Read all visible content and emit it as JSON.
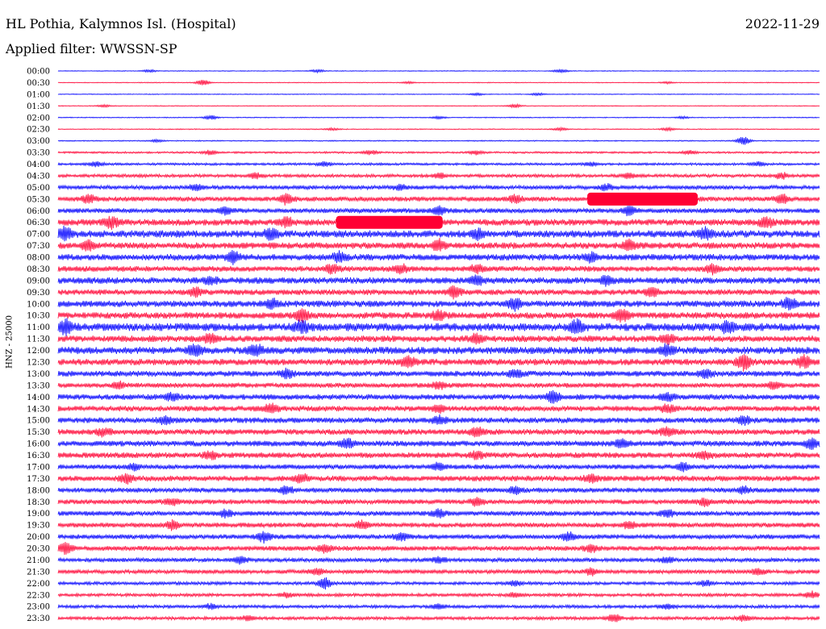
{
  "header": {
    "station": "HL Pothia, Kalymnos Isl. (Hospital)",
    "date": "2022-11-29",
    "filter": "Applied filter: WWSSN-SP",
    "channel": "HNZ - 25000"
  },
  "chart_data": {
    "type": "line",
    "title": "HL Pothia, Kalymnos Isl. (Hospital)",
    "subtitle": "Applied filter: WWSSN-SP",
    "ylabel": "HNZ - 25000",
    "xlabel": "",
    "grid": false,
    "legend": "none",
    "colors": [
      "#0000ff",
      "#ff0033"
    ],
    "rows": [
      {
        "time": "00:00",
        "color": "#0000ff",
        "noise": 0.5,
        "bursts": [
          [
            0.12,
            1.6
          ],
          [
            0.34,
            1.8
          ],
          [
            0.66,
            2.2
          ]
        ]
      },
      {
        "time": "00:30",
        "color": "#ff0033",
        "noise": 0.5,
        "bursts": [
          [
            0.19,
            3.5
          ],
          [
            0.46,
            1.5
          ],
          [
            0.8,
            1.4
          ]
        ]
      },
      {
        "time": "01:00",
        "color": "#0000ff",
        "noise": 0.5,
        "bursts": [
          [
            0.55,
            1.4
          ],
          [
            0.63,
            1.5
          ]
        ]
      },
      {
        "time": "01:30",
        "color": "#ff0033",
        "noise": 0.5,
        "bursts": [
          [
            0.06,
            1.4
          ],
          [
            0.6,
            2
          ]
        ]
      },
      {
        "time": "02:00",
        "color": "#0000ff",
        "noise": 0.6,
        "bursts": [
          [
            0.2,
            2.5
          ],
          [
            0.5,
            1.5
          ],
          [
            0.82,
            1.4
          ]
        ]
      },
      {
        "time": "02:30",
        "color": "#ff0033",
        "noise": 0.6,
        "bursts": [
          [
            0.36,
            1.6
          ],
          [
            0.66,
            1.8
          ],
          [
            0.8,
            2
          ]
        ]
      },
      {
        "time": "03:00",
        "color": "#0000ff",
        "noise": 0.7,
        "bursts": [
          [
            0.13,
            1.5
          ],
          [
            0.9,
            5
          ]
        ]
      },
      {
        "time": "03:30",
        "color": "#ff0033",
        "noise": 1.2,
        "bursts": [
          [
            0.2,
            2.5
          ],
          [
            0.41,
            2.5
          ],
          [
            0.55,
            2.5
          ],
          [
            0.83,
            2.5
          ]
        ]
      },
      {
        "time": "04:00",
        "color": "#0000ff",
        "noise": 1.5,
        "bursts": [
          [
            0.05,
            3
          ],
          [
            0.35,
            2.5
          ],
          [
            0.7,
            2.5
          ],
          [
            0.92,
            2.5
          ]
        ]
      },
      {
        "time": "04:30",
        "color": "#ff0033",
        "noise": 2,
        "bursts": [
          [
            0.26,
            3.5
          ],
          [
            0.5,
            3
          ],
          [
            0.75,
            3
          ],
          [
            0.95,
            3.5
          ]
        ]
      },
      {
        "time": "05:00",
        "color": "#0000ff",
        "noise": 2.5,
        "bursts": [
          [
            0.18,
            3.5
          ],
          [
            0.45,
            3.5
          ],
          [
            0.72,
            3.5
          ]
        ]
      },
      {
        "time": "05:30",
        "color": "#ff0033",
        "noise": 3,
        "bursts": [
          [
            0.04,
            5
          ],
          [
            0.3,
            6
          ],
          [
            0.6,
            4.5
          ],
          [
            0.95,
            5
          ]
        ]
      },
      {
        "time": "06:00",
        "color": "#0000ff",
        "noise": 3,
        "bursts": [
          [
            0.22,
            4
          ],
          [
            0.5,
            4
          ],
          [
            0.75,
            4.5
          ]
        ]
      },
      {
        "time": "06:30",
        "color": "#ff0033",
        "noise": 4,
        "bursts": [
          [
            0.07,
            6
          ],
          [
            0.3,
            5
          ],
          [
            0.93,
            6
          ]
        ]
      },
      {
        "time": "07:00",
        "color": "#0000ff",
        "noise": 4.5,
        "bursts": [
          [
            0.01,
            7
          ],
          [
            0.28,
            6
          ],
          [
            0.55,
            5
          ],
          [
            0.85,
            5.5
          ]
        ]
      },
      {
        "time": "07:30",
        "color": "#ff0033",
        "noise": 4,
        "bursts": [
          [
            0.04,
            5
          ],
          [
            0.5,
            6
          ],
          [
            0.75,
            5.5
          ]
        ]
      },
      {
        "time": "08:00",
        "color": "#0000ff",
        "noise": 4,
        "bursts": [
          [
            0.23,
            7
          ],
          [
            0.37,
            6
          ],
          [
            0.7,
            4.5
          ]
        ]
      },
      {
        "time": "08:30",
        "color": "#ff0033",
        "noise": 3.5,
        "bursts": [
          [
            0.36,
            5
          ],
          [
            0.45,
            5
          ],
          [
            0.55,
            5
          ],
          [
            0.86,
            5
          ]
        ]
      },
      {
        "time": "09:00",
        "color": "#0000ff",
        "noise": 4,
        "bursts": [
          [
            0.2,
            4
          ],
          [
            0.55,
            4.5
          ],
          [
            0.72,
            4.5
          ]
        ]
      },
      {
        "time": "09:30",
        "color": "#ff0033",
        "noise": 3.5,
        "bursts": [
          [
            0.18,
            4.5
          ],
          [
            0.52,
            6
          ],
          [
            0.78,
            5
          ]
        ]
      },
      {
        "time": "10:00",
        "color": "#0000ff",
        "noise": 4,
        "bursts": [
          [
            0.28,
            5
          ],
          [
            0.6,
            7
          ],
          [
            0.96,
            7
          ]
        ]
      },
      {
        "time": "10:30",
        "color": "#ff0033",
        "noise": 4,
        "bursts": [
          [
            0.32,
            7
          ],
          [
            0.5,
            5
          ],
          [
            0.74,
            7
          ]
        ]
      },
      {
        "time": "11:00",
        "color": "#0000ff",
        "noise": 5,
        "bursts": [
          [
            0.01,
            8
          ],
          [
            0.32,
            6
          ],
          [
            0.68,
            7
          ],
          [
            0.88,
            6
          ]
        ]
      },
      {
        "time": "11:30",
        "color": "#ff0033",
        "noise": 4,
        "bursts": [
          [
            0.2,
            5
          ],
          [
            0.55,
            5
          ],
          [
            0.8,
            5
          ]
        ]
      },
      {
        "time": "12:00",
        "color": "#0000ff",
        "noise": 4.5,
        "bursts": [
          [
            0.18,
            6
          ],
          [
            0.26,
            6.5
          ],
          [
            0.8,
            6
          ]
        ]
      },
      {
        "time": "12:30",
        "color": "#ff0033",
        "noise": 4,
        "bursts": [
          [
            0.46,
            6
          ],
          [
            0.9,
            8
          ],
          [
            0.98,
            7
          ]
        ]
      },
      {
        "time": "13:00",
        "color": "#0000ff",
        "noise": 3.5,
        "bursts": [
          [
            0.3,
            5
          ],
          [
            0.6,
            5
          ],
          [
            0.85,
            5
          ]
        ]
      },
      {
        "time": "13:30",
        "color": "#ff0033",
        "noise": 3,
        "bursts": [
          [
            0.08,
            4
          ],
          [
            0.5,
            4
          ],
          [
            0.94,
            4
          ]
        ]
      },
      {
        "time": "14:00",
        "color": "#0000ff",
        "noise": 3.5,
        "bursts": [
          [
            0.15,
            4
          ],
          [
            0.65,
            6
          ],
          [
            0.8,
            4.5
          ]
        ]
      },
      {
        "time": "14:30",
        "color": "#ff0033",
        "noise": 3.5,
        "bursts": [
          [
            0.28,
            5
          ],
          [
            0.5,
            4
          ],
          [
            0.8,
            4
          ]
        ]
      },
      {
        "time": "15:00",
        "color": "#0000ff",
        "noise": 3.5,
        "bursts": [
          [
            0.14,
            4
          ],
          [
            0.5,
            4.5
          ],
          [
            0.9,
            5
          ]
        ]
      },
      {
        "time": "15:30",
        "color": "#ff0033",
        "noise": 3.5,
        "bursts": [
          [
            0.06,
            4.5
          ],
          [
            0.55,
            5
          ],
          [
            0.8,
            4.5
          ]
        ]
      },
      {
        "time": "16:00",
        "color": "#0000ff",
        "noise": 3.5,
        "bursts": [
          [
            0.38,
            5
          ],
          [
            0.74,
            5
          ],
          [
            0.99,
            6
          ]
        ]
      },
      {
        "time": "16:30",
        "color": "#ff0033",
        "noise": 3.5,
        "bursts": [
          [
            0.2,
            4
          ],
          [
            0.55,
            4
          ],
          [
            0.85,
            4
          ]
        ]
      },
      {
        "time": "17:00",
        "color": "#0000ff",
        "noise": 3,
        "bursts": [
          [
            0.1,
            4
          ],
          [
            0.5,
            4
          ],
          [
            0.82,
            4
          ]
        ]
      },
      {
        "time": "17:30",
        "color": "#ff0033",
        "noise": 3.5,
        "bursts": [
          [
            0.09,
            5
          ],
          [
            0.32,
            4.5
          ],
          [
            0.7,
            4
          ]
        ]
      },
      {
        "time": "18:00",
        "color": "#0000ff",
        "noise": 3,
        "bursts": [
          [
            0.3,
            4
          ],
          [
            0.6,
            4
          ],
          [
            0.9,
            4
          ]
        ]
      },
      {
        "time": "18:30",
        "color": "#ff0033",
        "noise": 3,
        "bursts": [
          [
            0.15,
            4
          ],
          [
            0.55,
            4
          ],
          [
            0.85,
            4
          ]
        ]
      },
      {
        "time": "19:00",
        "color": "#0000ff",
        "noise": 3,
        "bursts": [
          [
            0.22,
            4
          ],
          [
            0.5,
            4
          ],
          [
            0.8,
            4
          ]
        ]
      },
      {
        "time": "19:30",
        "color": "#ff0033",
        "noise": 3,
        "bursts": [
          [
            0.15,
            5
          ],
          [
            0.4,
            4
          ],
          [
            0.75,
            4
          ]
        ]
      },
      {
        "time": "20:00",
        "color": "#0000ff",
        "noise": 3,
        "bursts": [
          [
            0.27,
            6
          ],
          [
            0.45,
            4
          ],
          [
            0.67,
            4.5
          ]
        ]
      },
      {
        "time": "20:30",
        "color": "#ff0033",
        "noise": 3,
        "bursts": [
          [
            0.01,
            6
          ],
          [
            0.35,
            4
          ],
          [
            0.7,
            4
          ]
        ]
      },
      {
        "time": "21:00",
        "color": "#0000ff",
        "noise": 2.5,
        "bursts": [
          [
            0.24,
            4
          ],
          [
            0.5,
            3.5
          ],
          [
            0.8,
            3.5
          ]
        ]
      },
      {
        "time": "21:30",
        "color": "#ff0033",
        "noise": 2.5,
        "bursts": [
          [
            0.34,
            4
          ],
          [
            0.7,
            4
          ],
          [
            0.92,
            3.5
          ]
        ]
      },
      {
        "time": "22:00",
        "color": "#0000ff",
        "noise": 2,
        "bursts": [
          [
            0.35,
            6
          ],
          [
            0.6,
            3
          ],
          [
            0.85,
            3
          ]
        ]
      },
      {
        "time": "22:30",
        "color": "#ff0033",
        "noise": 2,
        "bursts": [
          [
            0.3,
            3
          ],
          [
            0.6,
            3
          ],
          [
            0.99,
            4
          ]
        ]
      },
      {
        "time": "23:00",
        "color": "#0000ff",
        "noise": 2,
        "bursts": [
          [
            0.2,
            3
          ],
          [
            0.5,
            3
          ],
          [
            0.8,
            3
          ]
        ]
      },
      {
        "time": "23:30",
        "color": "#ff0033",
        "noise": 2,
        "bursts": [
          [
            0.25,
            3
          ],
          [
            0.73,
            4.5
          ],
          [
            0.9,
            3
          ]
        ]
      }
    ],
    "saturated": [
      {
        "time": "05:30",
        "x0": 0.695,
        "x1": 0.84,
        "color": "#ff0033"
      },
      {
        "time": "06:30",
        "x0": 0.365,
        "x1": 0.505,
        "color": "#ff0033"
      }
    ]
  }
}
